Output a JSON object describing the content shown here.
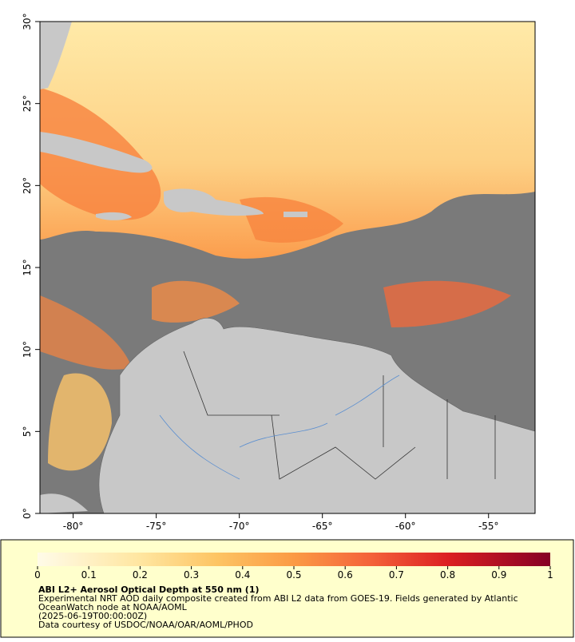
{
  "map": {
    "xlim": [
      -82,
      -52.2
    ],
    "ylim": [
      0,
      30
    ],
    "xticks": [
      {
        "value": -80,
        "label": "-80°"
      },
      {
        "value": -75,
        "label": "-75°"
      },
      {
        "value": -70,
        "label": "-70°"
      },
      {
        "value": -65,
        "label": "-65°"
      },
      {
        "value": -60,
        "label": "-60°"
      },
      {
        "value": -55,
        "label": "-55°"
      }
    ],
    "yticks": [
      {
        "value": 0,
        "label": "0°"
      },
      {
        "value": 5,
        "label": "5°"
      },
      {
        "value": 10,
        "label": "10°"
      },
      {
        "value": 15,
        "label": "15°"
      },
      {
        "value": 20,
        "label": "20°"
      },
      {
        "value": 25,
        "label": "25°"
      },
      {
        "value": 30,
        "label": "30°"
      }
    ]
  },
  "colorbar": {
    "lim": [
      0,
      1
    ],
    "ticks": [
      0,
      0.1,
      0.2,
      0.3,
      0.4,
      0.5,
      0.6,
      0.7,
      0.8,
      0.9,
      1
    ]
  },
  "caption": {
    "title": "ABI L2+ Aerosol Optical Depth at 550 nm (1)",
    "lines": [
      "Experimental NRT AOD daily composite created from ABI L2 data from GOES-19. Fields generated by Atlantic",
      "OceanWatch node at NOAA/AOML",
      "(2025-06-19T00:00:00Z)",
      "Data courtesy of USDOC/NOAA/OAR/AOML/PHOD"
    ]
  }
}
